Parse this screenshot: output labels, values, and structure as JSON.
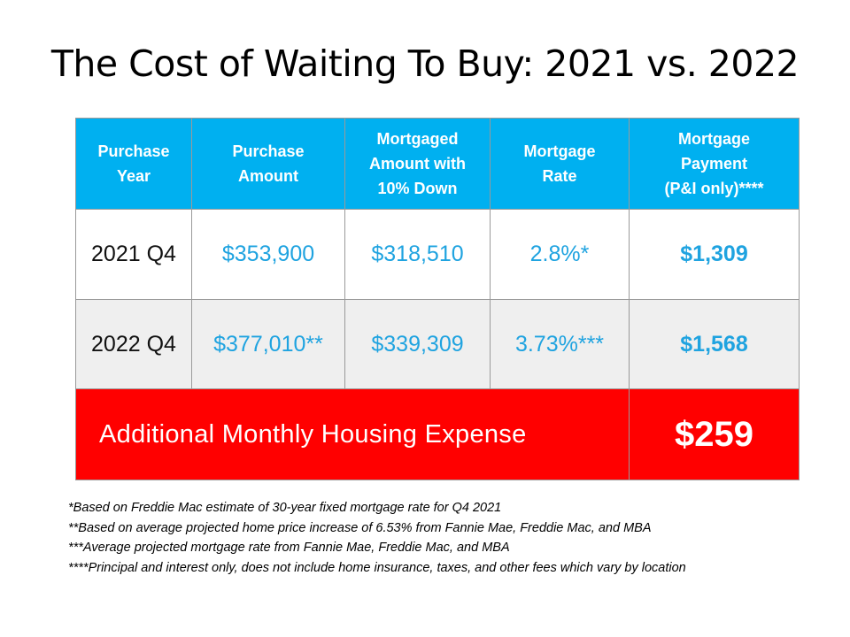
{
  "title": "The Cost of Waiting To Buy: 2021 vs. 2022",
  "table": {
    "headers": [
      [
        "Purchase",
        "Year"
      ],
      [
        "Purchase",
        "Amount"
      ],
      [
        "Mortgaged",
        "Amount with",
        "10% Down"
      ],
      [
        "Mortgage",
        "Rate"
      ],
      [
        "Mortgage",
        "Payment",
        "(P&I only)****"
      ]
    ],
    "rows": [
      {
        "year": "2021 Q4",
        "amount": "$353,900",
        "mortgaged": "$318,510",
        "rate": "2.8%*",
        "payment": "$1,309"
      },
      {
        "year": "2022 Q4",
        "amount": "$377,010**",
        "mortgaged": "$339,309",
        "rate": "3.73%***",
        "payment": "$1,568"
      }
    ],
    "total": {
      "label": "Additional Monthly Housing Expense",
      "value": "$259"
    }
  },
  "footnotes": [
    "*Based on Freddie Mac estimate of 30-year fixed mortgage rate for Q4 2021",
    "**Based on average projected home price increase of 6.53% from Fannie Mae, Freddie Mac, and MBA",
    "***Average projected mortgage rate from Fannie Mae, Freddie Mac, and MBA",
    "****Principal and interest only, does not include home insurance, taxes, and other fees which vary by location"
  ],
  "colors": {
    "header_bg": "#00b0f0",
    "value_text": "#1fa3e0",
    "total_bg": "#ff0000",
    "alt_row_bg": "#efefef"
  }
}
